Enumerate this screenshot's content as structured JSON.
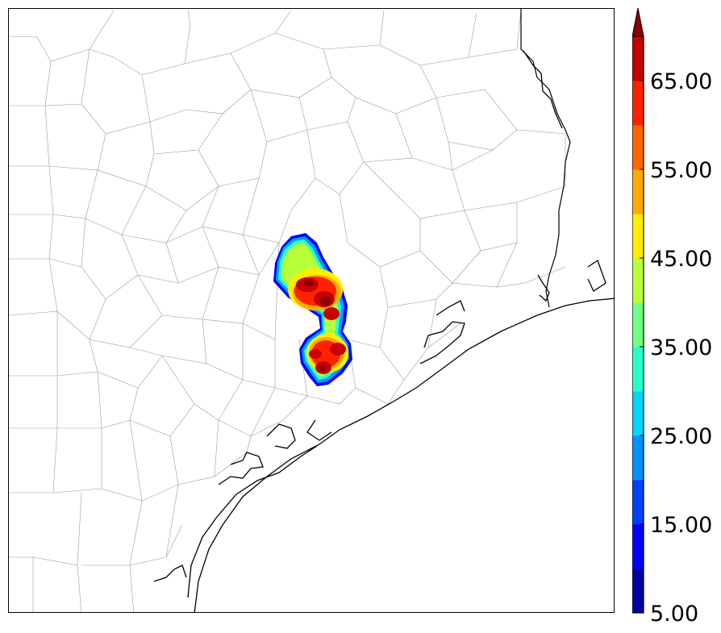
{
  "map": {
    "region": "Southeast Texas Gulf Coast",
    "base_layers": [
      "county-boundaries",
      "state-boundary",
      "coastline"
    ],
    "field": "reflectivity-like contour shading"
  },
  "colorbar": {
    "min": 5,
    "max": 70,
    "step": 5,
    "extend": "max",
    "tick_labels": [
      "5.00",
      "15.00",
      "25.00",
      "35.00",
      "45.00",
      "55.00",
      "65.00"
    ],
    "colors": [
      "#0000a6",
      "#0000ff",
      "#0040ff",
      "#0090ff",
      "#00d5ff",
      "#28ffc8",
      "#70ff80",
      "#b8ff3a",
      "#ffee00",
      "#ffaa00",
      "#ff6600",
      "#ff2200",
      "#c80000",
      "#8b0000"
    ]
  }
}
